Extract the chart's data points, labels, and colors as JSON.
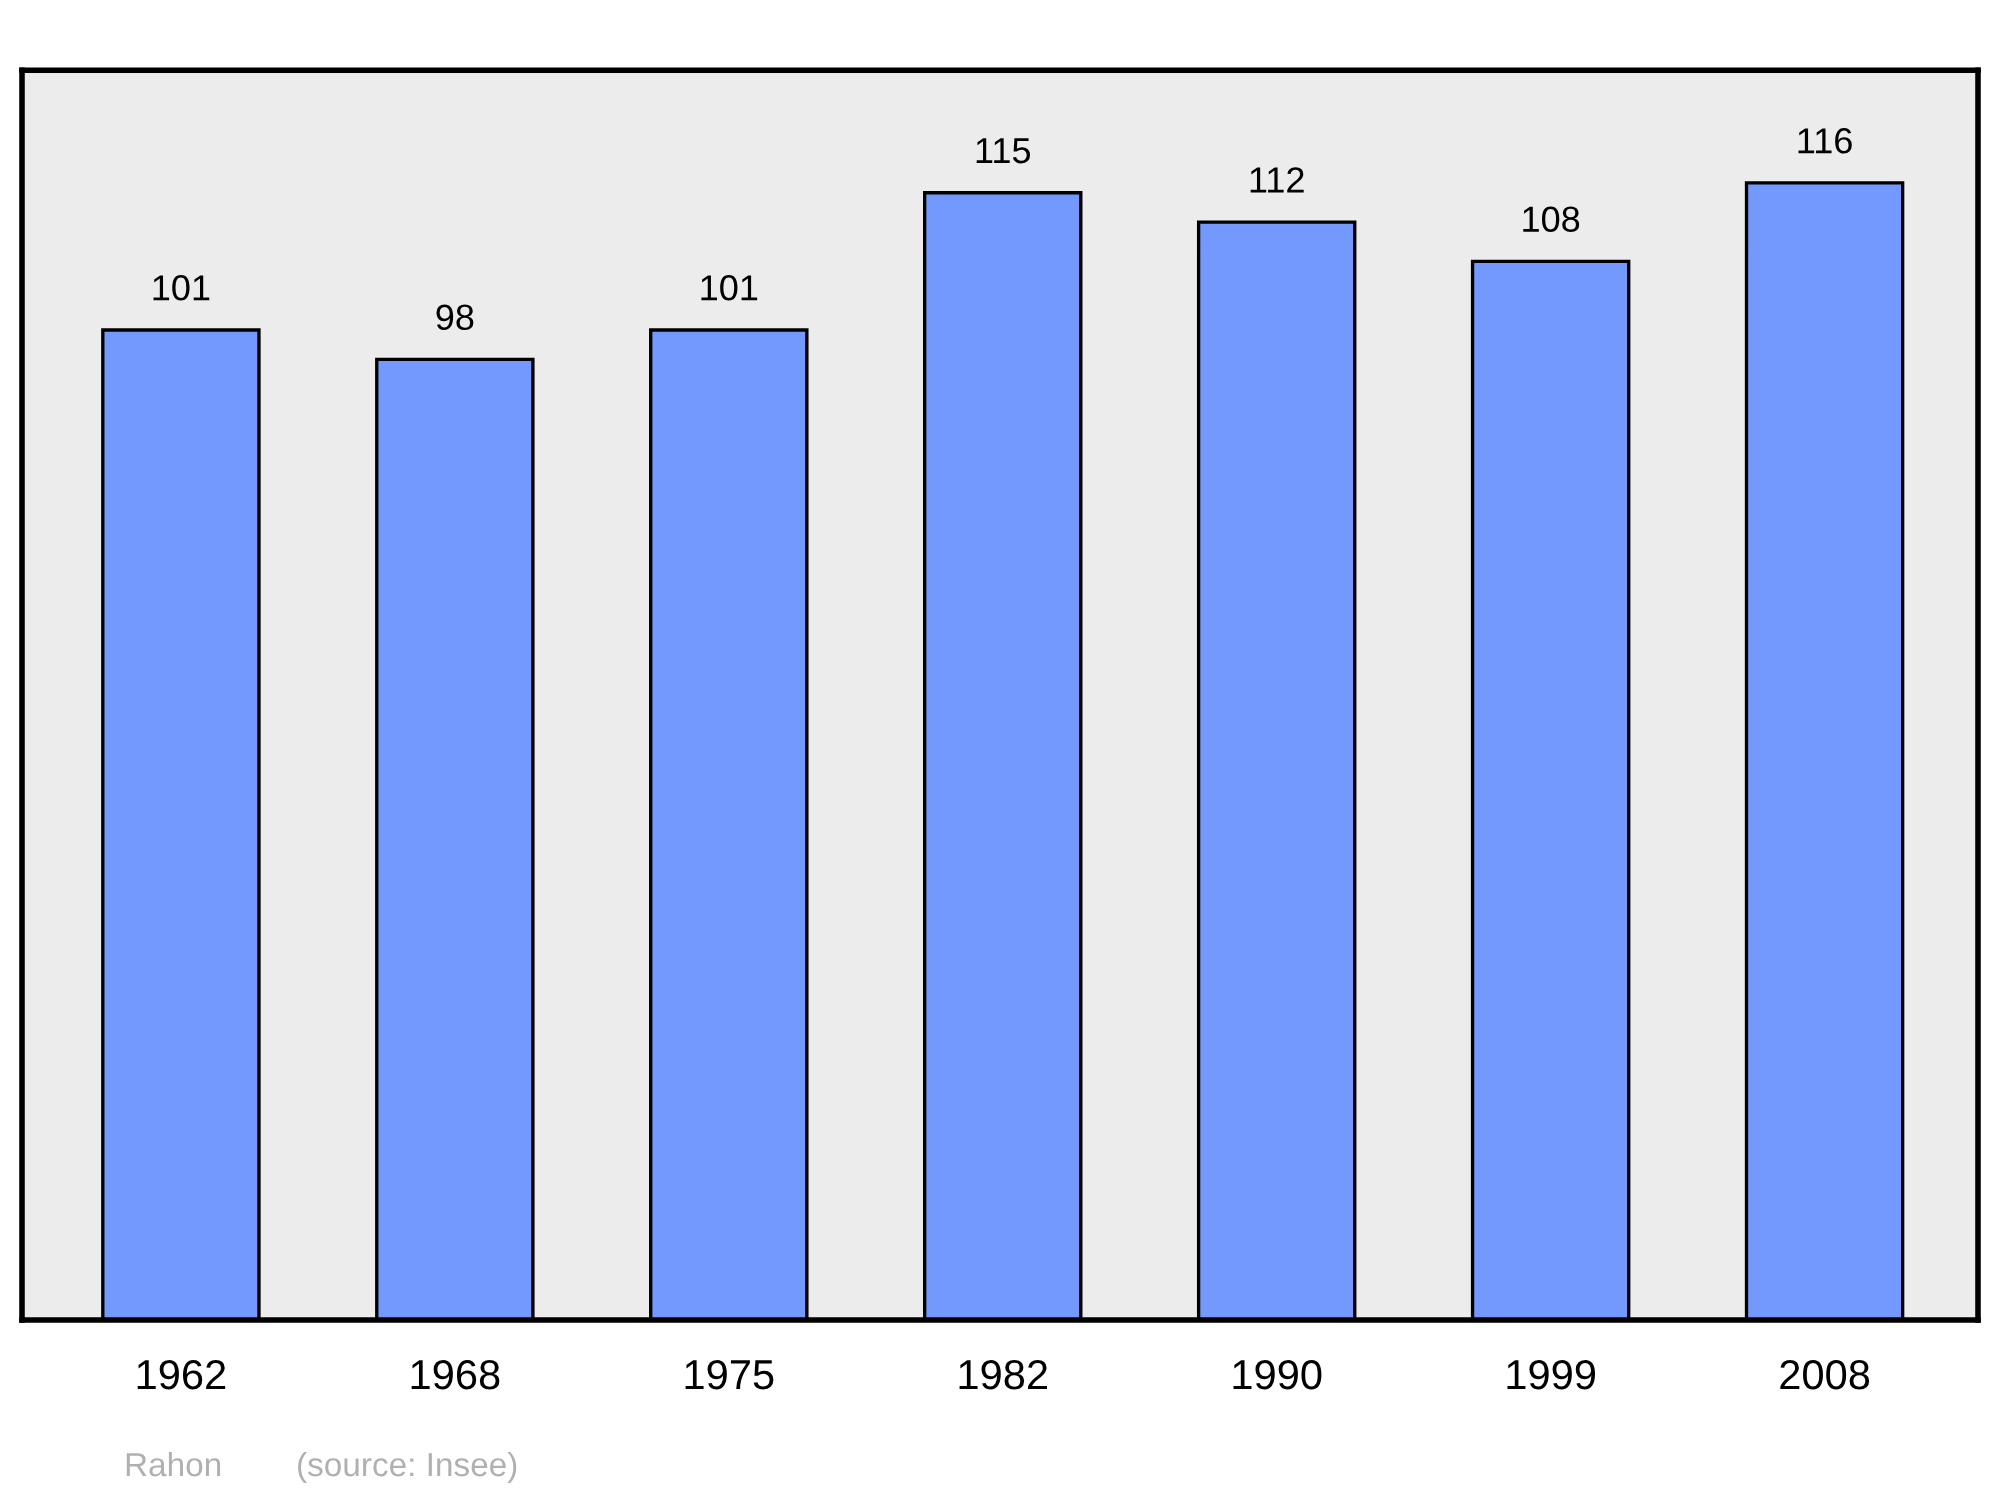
{
  "chart_data": {
    "type": "bar",
    "categories": [
      "1962",
      "1968",
      "1975",
      "1982",
      "1990",
      "1999",
      "2008"
    ],
    "values": [
      101,
      98,
      101,
      115,
      112,
      108,
      116
    ],
    "color": "#7399ff",
    "ylim": [
      0,
      127.5
    ],
    "data_labels": true,
    "tick_labels": "x",
    "grid": false,
    "legend": false,
    "annotations": [
      "Rahon",
      "(source: Insee)"
    ]
  }
}
